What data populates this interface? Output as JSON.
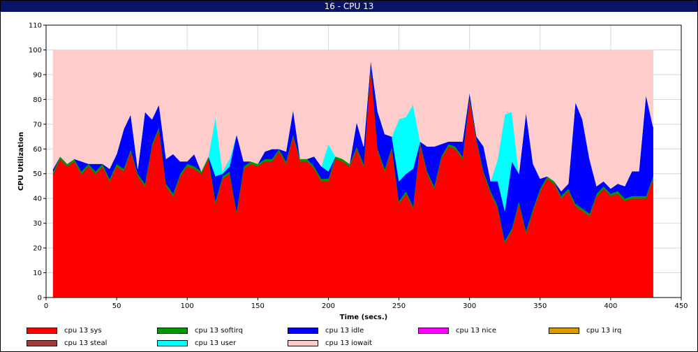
{
  "window": {
    "title": "16 - CPU 13"
  },
  "chart_data": {
    "type": "area",
    "stacked": true,
    "title": "16 - CPU 13",
    "xlabel": "Time (secs.)",
    "ylabel": "CPU Utilization",
    "xlim": [
      0,
      450
    ],
    "ylim": [
      0,
      110
    ],
    "xticks": [
      0,
      50,
      100,
      150,
      200,
      250,
      300,
      350,
      400,
      450
    ],
    "yticks": [
      0,
      10,
      20,
      30,
      40,
      50,
      60,
      70,
      80,
      90,
      100,
      110
    ],
    "grid": true,
    "legend_position": "bottom",
    "x": [
      5,
      10,
      15,
      20,
      25,
      30,
      35,
      40,
      45,
      50,
      55,
      60,
      65,
      70,
      75,
      80,
      85,
      90,
      95,
      100,
      105,
      110,
      115,
      120,
      125,
      130,
      135,
      140,
      145,
      150,
      155,
      160,
      165,
      170,
      175,
      180,
      185,
      190,
      195,
      200,
      205,
      210,
      215,
      220,
      225,
      230,
      235,
      240,
      245,
      250,
      255,
      260,
      265,
      270,
      275,
      280,
      285,
      290,
      295,
      300,
      305,
      310,
      315,
      320,
      325,
      330,
      335,
      340,
      345,
      350,
      355,
      360,
      365,
      370,
      375,
      380,
      385,
      390,
      395,
      400,
      405,
      410,
      415,
      420,
      425,
      430
    ],
    "series": [
      {
        "name": "cpu 13 sys",
        "color": "#ff0000",
        "values": [
          50,
          56,
          53,
          55,
          50,
          53,
          50,
          53,
          47,
          53,
          51,
          59,
          49,
          45,
          61,
          68,
          45,
          41,
          49,
          53,
          52,
          50,
          56,
          38,
          48,
          50,
          34,
          52,
          54,
          53,
          55,
          55,
          59,
          54,
          65,
          55,
          55,
          52,
          47,
          47,
          56,
          55,
          53,
          60,
          53,
          93,
          59,
          51,
          60,
          38,
          42,
          36,
          62,
          50,
          44,
          56,
          61,
          60,
          56,
          80,
          63,
          50,
          42,
          36,
          22,
          27,
          38,
          26,
          35,
          43,
          48,
          46,
          40,
          43,
          37,
          35,
          33,
          41,
          44,
          41,
          42,
          39,
          40,
          40,
          40,
          48
        ]
      },
      {
        "name": "cpu 13 softirq",
        "color": "#009900",
        "values": [
          1,
          1,
          1,
          1,
          1,
          1,
          1,
          1,
          1,
          1,
          1,
          1,
          1,
          1,
          1,
          1,
          1,
          1,
          1,
          1,
          1,
          1,
          1,
          1,
          1,
          1,
          1,
          1,
          1,
          1,
          1,
          1,
          1,
          1,
          1,
          1,
          1,
          1,
          1,
          1,
          1,
          1,
          1,
          1,
          1,
          1,
          1,
          1,
          1,
          1,
          1,
          1,
          1,
          1,
          1,
          1,
          1,
          1,
          1,
          1,
          1,
          1,
          1,
          1,
          1,
          1,
          1,
          1,
          1,
          1,
          1,
          1,
          1,
          1,
          1,
          1,
          1,
          1,
          1,
          1,
          1,
          1,
          1,
          1,
          1,
          1
        ]
      },
      {
        "name": "cpu 13 idle",
        "color": "#0000ff",
        "values": [
          1,
          0,
          0,
          0,
          4,
          0,
          3,
          0,
          4,
          4,
          16,
          14,
          2,
          29,
          10,
          9,
          10,
          16,
          5,
          1,
          5,
          0,
          0,
          10,
          1,
          2,
          31,
          2,
          0,
          0,
          3,
          4,
          0,
          4,
          10,
          0,
          0,
          4,
          5,
          3,
          0,
          0,
          0,
          10,
          7,
          2,
          15,
          14,
          4,
          8,
          7,
          15,
          0,
          10,
          16,
          5,
          1,
          2,
          6,
          2,
          1,
          10,
          4,
          10,
          12,
          27,
          11,
          48,
          18,
          4,
          0,
          0,
          2,
          2,
          41,
          36,
          22,
          3,
          2,
          2,
          3,
          5,
          10,
          10,
          41,
          20
        ]
      },
      {
        "name": "cpu 13 nice",
        "color": "#ff00ff",
        "values": [
          0,
          0,
          0,
          0,
          0,
          0,
          0,
          0,
          0,
          0,
          0,
          0,
          0,
          0,
          0,
          0,
          0,
          0,
          0,
          0,
          0,
          0,
          0,
          0,
          0,
          0,
          0,
          0,
          0,
          0,
          0,
          0,
          0,
          0,
          0,
          0,
          0,
          0,
          0,
          0,
          0,
          0,
          0,
          0,
          0,
          0,
          0,
          0,
          0,
          0,
          0,
          0,
          0,
          0,
          0,
          0,
          0,
          0,
          0,
          0,
          0,
          0,
          0,
          0,
          0,
          0,
          0,
          0,
          0,
          0,
          0,
          0,
          0,
          0,
          0,
          0,
          0,
          0,
          0,
          0,
          0,
          0,
          0,
          0,
          0,
          0
        ]
      },
      {
        "name": "cpu 13 irq",
        "color": "#dd9900",
        "values": [
          0,
          0,
          0,
          0,
          0,
          0,
          0,
          0,
          0,
          0,
          0,
          0,
          0,
          0,
          0,
          0,
          0,
          0,
          0,
          0,
          0,
          0,
          0,
          0,
          0,
          0,
          0,
          0,
          0,
          0,
          0,
          0,
          0,
          0,
          0,
          0,
          0,
          0,
          0,
          0,
          0,
          0,
          0,
          0,
          0,
          0,
          0,
          0,
          0,
          0,
          0,
          0,
          0,
          0,
          0,
          0,
          0,
          0,
          0,
          0,
          0,
          0,
          0,
          0,
          0,
          0,
          0,
          0,
          0,
          0,
          0,
          0,
          0,
          0,
          0,
          0,
          0,
          0,
          0,
          0,
          0,
          0,
          0,
          0,
          0,
          0
        ]
      },
      {
        "name": "cpu 13 steal",
        "color": "#a03c3c",
        "values": [
          0,
          0,
          0,
          0,
          0,
          0,
          0,
          0,
          0,
          0,
          0,
          0,
          0,
          0,
          0,
          0,
          0,
          0,
          0,
          0,
          0,
          0,
          0,
          0,
          0,
          0,
          0,
          0,
          0,
          0,
          0,
          0,
          0,
          0,
          0,
          0,
          0,
          0,
          0,
          0,
          0,
          0,
          0,
          0,
          0,
          0,
          0,
          0,
          0,
          0,
          0,
          0,
          0,
          0,
          0,
          0,
          0,
          0,
          0,
          0,
          0,
          0,
          0,
          0,
          0,
          0,
          0,
          0,
          0,
          0,
          0,
          0,
          0,
          0,
          0,
          0,
          0,
          0,
          0,
          0,
          0,
          0,
          0,
          0,
          0,
          0
        ]
      },
      {
        "name": "cpu 13 user",
        "color": "#00ffff",
        "values": [
          0,
          0,
          0,
          0,
          0,
          0,
          0,
          0,
          0,
          0,
          0,
          0,
          0,
          0,
          0,
          0,
          0,
          0,
          0,
          0,
          0,
          0,
          0,
          24,
          1,
          3,
          0,
          0,
          0,
          0,
          0,
          0,
          0,
          0,
          0,
          0,
          0,
          0,
          0,
          11,
          0,
          0,
          0,
          0,
          0,
          0,
          0,
          0,
          0,
          25,
          23,
          26,
          0,
          0,
          0,
          0,
          0,
          0,
          0,
          0,
          0,
          0,
          0,
          9,
          39,
          20,
          0,
          0,
          0,
          0,
          0,
          0,
          0,
          0,
          0,
          0,
          0,
          0,
          0,
          0,
          0,
          0,
          0,
          0,
          0,
          0
        ]
      },
      {
        "name": "cpu 13 iowait",
        "color": "#ffcccc",
        "values": [
          48,
          43,
          46,
          44,
          45,
          46,
          46,
          46,
          48,
          42,
          32,
          26,
          48,
          25,
          28,
          22,
          44,
          42,
          45,
          45,
          42,
          49,
          43,
          27,
          49,
          44,
          34,
          45,
          45,
          46,
          41,
          40,
          40,
          41,
          24,
          44,
          44,
          43,
          47,
          38,
          43,
          44,
          46,
          29,
          39,
          4,
          25,
          34,
          35,
          28,
          27,
          22,
          37,
          39,
          39,
          38,
          37,
          37,
          37,
          17,
          35,
          39,
          53,
          44,
          26,
          25,
          50,
          25,
          46,
          52,
          51,
          53,
          57,
          54,
          21,
          28,
          44,
          55,
          53,
          56,
          54,
          55,
          49,
          49,
          18,
          31
        ]
      }
    ]
  }
}
